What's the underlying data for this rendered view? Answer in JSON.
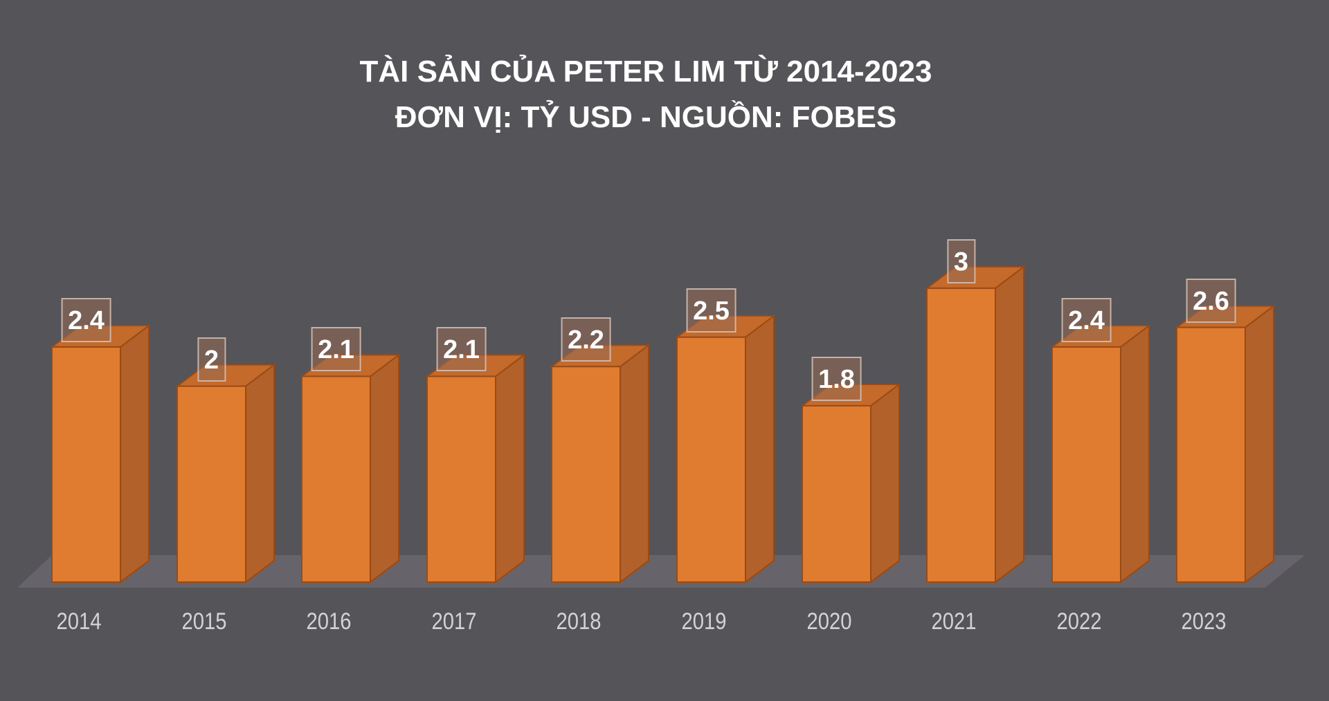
{
  "title": {
    "line1": "TÀI SẢN CỦA PETER LIM TỪ 2014-2023",
    "line2": "ĐƠN VỊ: TỶ USD - NGUỒN: FOBES"
  },
  "colors": {
    "background": "#555458",
    "bar_front": "#E07C30",
    "bar_side": "#B3612A",
    "bar_top": "#C46A2A",
    "bar_edge": "#9A4A14",
    "floor": "#66646A",
    "year_text": "#D4D2D5",
    "label_text": "#FFFFFF"
  },
  "chart_data": {
    "type": "bar",
    "title": "TÀI SẢN CỦA PETER LIM TỪ 2014-2023 — ĐƠN VỊ: TỶ USD - NGUỒN: FOBES",
    "xlabel": "",
    "ylabel": "Tỷ USD",
    "categories": [
      "2014",
      "2015",
      "2016",
      "2017",
      "2018",
      "2019",
      "2020",
      "2021",
      "2022",
      "2023"
    ],
    "values": [
      2.4,
      2,
      2.1,
      2.1,
      2.2,
      2.5,
      1.8,
      3,
      2.4,
      2.6
    ],
    "data_labels": [
      "2.4",
      "2",
      "2.1",
      "2.1",
      "2.2",
      "2.5",
      "1.8",
      "3",
      "2.4",
      "2.6"
    ],
    "ylim": [
      0,
      3
    ],
    "grid": false,
    "legend": null,
    "style": "3d-column"
  }
}
